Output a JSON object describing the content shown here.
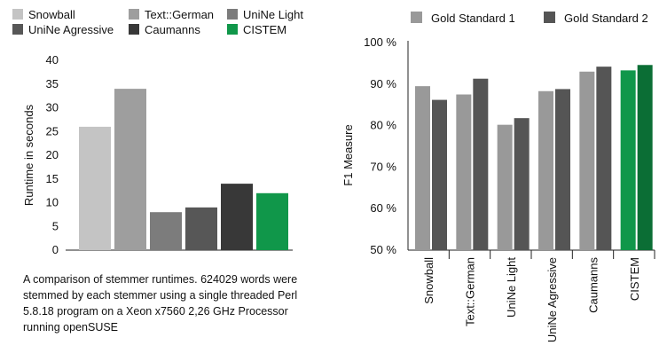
{
  "chart_data": [
    {
      "type": "bar",
      "title": "",
      "xlabel": "",
      "ylabel": "Runtime in seconds",
      "ylim": [
        0,
        40
      ],
      "yticks": [
        0,
        5,
        10,
        15,
        20,
        25,
        30,
        35,
        40
      ],
      "grid": false,
      "legend_position": "top",
      "categories": [
        "Snowball",
        "Text::German",
        "UniNe Light",
        "UniNe Agressive",
        "Caumanns",
        "CISTEM"
      ],
      "values": [
        26,
        34,
        8,
        9,
        14,
        12
      ],
      "colors": [
        "#c4c4c4",
        "#9e9e9e",
        "#7c7c7c",
        "#575757",
        "#383838",
        "#10974a"
      ]
    },
    {
      "type": "bar",
      "title": "",
      "xlabel": "",
      "ylabel": "F1 Measure",
      "ylim": [
        50,
        100
      ],
      "yticks": [
        "50 %",
        "60 %",
        "70 %",
        "80 %",
        "90 %",
        "100 %"
      ],
      "ytick_values": [
        50,
        60,
        70,
        80,
        90,
        100
      ],
      "grid": false,
      "legend_position": "top",
      "categories": [
        "Snowball",
        "Text::German",
        "UniNe Light",
        "UniNe Agressive",
        "Caumanns",
        "CISTEM"
      ],
      "series": [
        {
          "name": "Gold Standard 1",
          "values": [
            89.5,
            87.5,
            80.2,
            88.3,
            93.0,
            93.3
          ],
          "color": "#999999"
        },
        {
          "name": "Gold Standard 2",
          "values": [
            86.2,
            91.3,
            81.8,
            88.8,
            94.2,
            94.6
          ],
          "color": "#555555"
        }
      ],
      "cistem_colors": [
        "#10974a",
        "#0b6e35"
      ]
    }
  ],
  "caption": "A comparison of stemmer runtimes. 624029 words were stemmed by each stemmer using a single threaded Perl 5.8.18 program on a Xeon x7560 2,26 GHz Processor running openSUSE"
}
